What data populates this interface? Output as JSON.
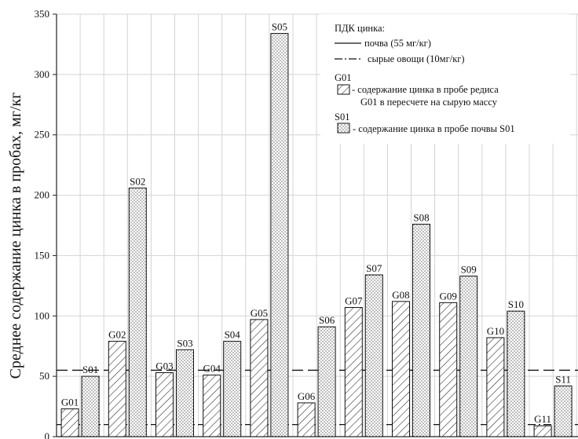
{
  "chart_data": {
    "type": "bar",
    "ylabel": "Среднее содержание цинка в пробах, мг/кг",
    "ylim": [
      0,
      350
    ],
    "yticks": [
      0,
      50,
      100,
      150,
      200,
      250,
      300,
      350
    ],
    "grid": true,
    "legend_position": "top-right",
    "series": [
      {
        "key": "G",
        "pattern": "hatch",
        "labels": [
          "G01",
          "G02",
          "G03",
          "G04",
          "G05",
          "G06",
          "G07",
          "G08",
          "G09",
          "G10",
          "G11"
        ],
        "values": [
          23,
          79,
          53,
          51,
          97,
          28,
          107,
          112,
          111,
          82,
          9
        ]
      },
      {
        "key": "S",
        "pattern": "dots",
        "labels": [
          "S01",
          "S02",
          "S03",
          "S04",
          "S05",
          "S06",
          "S07",
          "S08",
          "S09",
          "S10",
          "S11"
        ],
        "values": [
          50,
          206,
          72,
          79,
          334,
          91,
          134,
          176,
          133,
          104,
          42
        ]
      }
    ],
    "reference_lines": [
      {
        "value": 55,
        "style": "long-dash"
      },
      {
        "value": 10,
        "style": "dash-dot"
      }
    ],
    "legend": {
      "title": "ПДК цинка:",
      "line_soil": "почва (55 мг/кг)",
      "line_veg": "сырые овощи (10мг/кг)",
      "g_code": "G01",
      "g_text_1": "- содержание цинка в пробе  редиса",
      "g_text_2": "G01 в пересчете на сырую массу",
      "s_code": "S01",
      "s_text": "- содержание цинка в пробе почвы S01"
    }
  }
}
